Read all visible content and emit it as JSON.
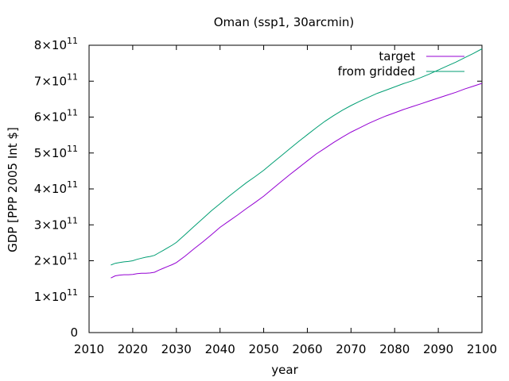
{
  "chart_data": {
    "type": "line",
    "title": "Oman (ssp1, 30arcmin)",
    "xlabel": "year",
    "ylabel": "GDP [PPP 2005 Int $]",
    "xlim": [
      2010,
      2100
    ],
    "ylim": [
      0,
      800000000000
    ],
    "x_ticks": [
      "2010",
      "2020",
      "2030",
      "2040",
      "2050",
      "2060",
      "2070",
      "2080",
      "2090",
      "2100"
    ],
    "y_ticks": [
      {
        "value": 0,
        "mantissa": "0",
        "exponent": ""
      },
      {
        "value": 100000000000,
        "mantissa": "1×10",
        "exponent": "11"
      },
      {
        "value": 200000000000,
        "mantissa": "2×10",
        "exponent": "11"
      },
      {
        "value": 300000000000,
        "mantissa": "3×10",
        "exponent": "11"
      },
      {
        "value": 400000000000,
        "mantissa": "4×10",
        "exponent": "11"
      },
      {
        "value": 500000000000,
        "mantissa": "5×10",
        "exponent": "11"
      },
      {
        "value": 600000000000,
        "mantissa": "6×10",
        "exponent": "11"
      },
      {
        "value": 700000000000,
        "mantissa": "7×10",
        "exponent": "11"
      },
      {
        "value": 800000000000,
        "mantissa": "8×10",
        "exponent": "11"
      }
    ],
    "grid": false,
    "legend_position": "top-right",
    "series": [
      {
        "name": "target",
        "color": "#9400d3",
        "x": [
          2015,
          2016,
          2017,
          2018,
          2019,
          2020,
          2021,
          2022,
          2023,
          2024,
          2025,
          2026,
          2027,
          2028,
          2029,
          2030,
          2032,
          2034,
          2036,
          2038,
          2040,
          2042,
          2044,
          2046,
          2048,
          2050,
          2052,
          2054,
          2056,
          2058,
          2060,
          2062,
          2064,
          2066,
          2068,
          2070,
          2072,
          2074,
          2076,
          2078,
          2080,
          2082,
          2084,
          2086,
          2088,
          2090,
          2092,
          2094,
          2096,
          2098,
          2100
        ],
        "y": [
          152000000000,
          158000000000,
          160000000000,
          161000000000,
          161000000000,
          162000000000,
          164000000000,
          165000000000,
          165000000000,
          166000000000,
          168000000000,
          174000000000,
          179000000000,
          184000000000,
          189000000000,
          195000000000,
          213000000000,
          233000000000,
          252000000000,
          272000000000,
          293000000000,
          310000000000,
          327000000000,
          345000000000,
          362000000000,
          380000000000,
          400000000000,
          420000000000,
          440000000000,
          459000000000,
          478000000000,
          497000000000,
          513000000000,
          529000000000,
          544000000000,
          558000000000,
          570000000000,
          582000000000,
          593000000000,
          603000000000,
          612000000000,
          621000000000,
          629000000000,
          637000000000,
          645000000000,
          653000000000,
          661000000000,
          669000000000,
          678000000000,
          686000000000,
          694000000000
        ]
      },
      {
        "name": "from gridded",
        "color": "#009e73",
        "x": [
          2015,
          2016,
          2017,
          2018,
          2019,
          2020,
          2021,
          2022,
          2023,
          2024,
          2025,
          2026,
          2027,
          2028,
          2029,
          2030,
          2032,
          2034,
          2036,
          2038,
          2040,
          2042,
          2044,
          2046,
          2048,
          2050,
          2052,
          2054,
          2056,
          2058,
          2060,
          2062,
          2064,
          2066,
          2068,
          2070,
          2072,
          2074,
          2076,
          2078,
          2080,
          2082,
          2084,
          2086,
          2088,
          2090,
          2092,
          2094,
          2096,
          2098,
          2100
        ],
        "y": [
          188000000000,
          193000000000,
          195000000000,
          197000000000,
          198000000000,
          200000000000,
          204000000000,
          207000000000,
          210000000000,
          212000000000,
          215000000000,
          222000000000,
          229000000000,
          236000000000,
          243000000000,
          251000000000,
          273000000000,
          295000000000,
          317000000000,
          339000000000,
          359000000000,
          379000000000,
          398000000000,
          417000000000,
          434000000000,
          452000000000,
          472000000000,
          492000000000,
          512000000000,
          532000000000,
          551000000000,
          570000000000,
          588000000000,
          604000000000,
          619000000000,
          632000000000,
          644000000000,
          655000000000,
          666000000000,
          675000000000,
          684000000000,
          693000000000,
          701000000000,
          710000000000,
          720000000000,
          731000000000,
          742000000000,
          753000000000,
          765000000000,
          777000000000,
          790000000000
        ]
      }
    ]
  }
}
